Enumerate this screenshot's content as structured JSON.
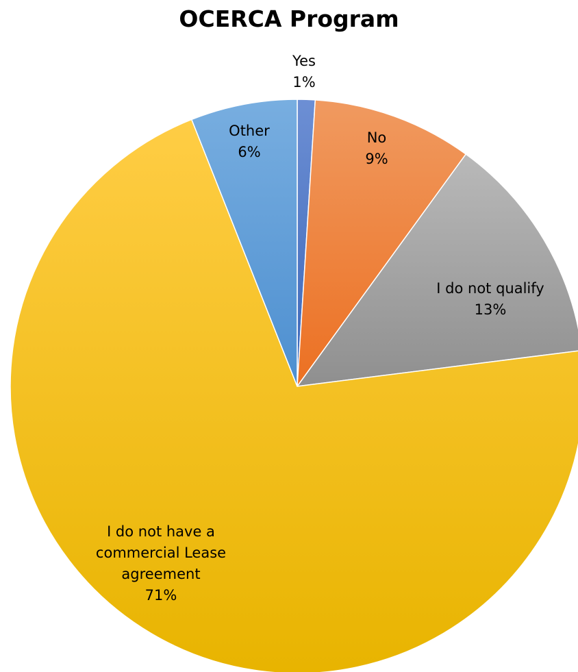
{
  "chart_data": {
    "type": "pie",
    "title": "OCERCA Program",
    "categories": [
      "Yes",
      "No",
      "I do not qualify",
      "I do not have a commercial Lease agreement",
      "Other"
    ],
    "values": [
      1,
      9,
      13,
      71,
      6
    ],
    "value_labels": [
      "1%",
      "9%",
      "13%",
      "71%",
      "6%"
    ],
    "label_lines": [
      [
        "Yes"
      ],
      [
        "No"
      ],
      [
        "I do not qualify"
      ],
      [
        "I do not have a",
        "commercial Lease",
        "agreement"
      ],
      [
        "Other"
      ]
    ],
    "colors": [
      "#4472C4",
      "#ED7D31",
      "#A5A5A5",
      "#FFC000",
      "#5B9BD5"
    ],
    "start_angle_deg": 0,
    "direction": "clockwise",
    "legend": "none"
  }
}
